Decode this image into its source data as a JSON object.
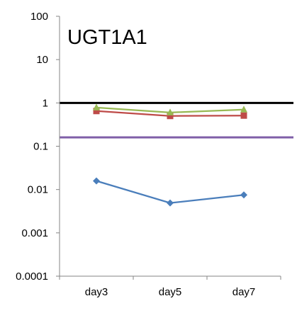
{
  "chart_data": {
    "type": "line",
    "title": "UGT1A1",
    "xlabel": "",
    "ylabel": "",
    "y_scale": "log",
    "ylim": [
      0.0001,
      100
    ],
    "y_ticks": [
      "100",
      "10",
      "1",
      "0.1",
      "0.01",
      "0.001",
      "0.0001"
    ],
    "y_tick_values": [
      100,
      10,
      1,
      0.1,
      0.01,
      0.001,
      0.0001
    ],
    "categories": [
      "day3",
      "day5",
      "day7"
    ],
    "grid": false,
    "legend": "none",
    "reference_lines": [
      {
        "value": 1.0,
        "color": "#000000"
      },
      {
        "value": 0.16,
        "color": "#7f5fa8"
      }
    ],
    "series": [
      {
        "values": [
          0.0158,
          0.0049,
          0.0075
        ],
        "color": "#4a7ebb",
        "marker": "diamond"
      },
      {
        "values": [
          0.65,
          0.5,
          0.51
        ],
        "color": "#be4b48",
        "marker": "square"
      },
      {
        "values": [
          0.78,
          0.6,
          0.7
        ],
        "color": "#98b954",
        "marker": "triangle"
      }
    ]
  }
}
